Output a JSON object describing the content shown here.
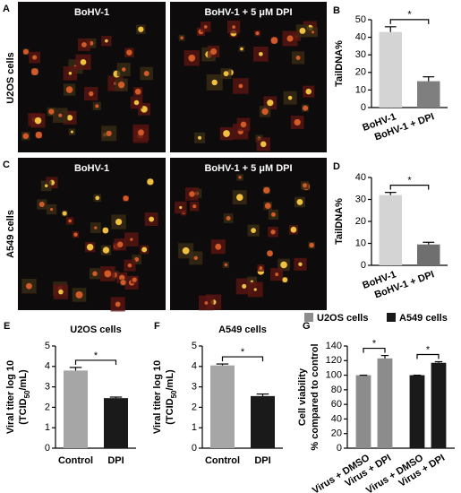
{
  "panels": [
    {
      "letter": "A",
      "row_label": "U2OS cells",
      "images": [
        "BoHV-1",
        "BoHV-1 + 5 μM DPI"
      ]
    },
    {
      "letter": "C",
      "row_label": "A549 cells",
      "images": [
        "BoHV-1",
        "BoHV-1 + 5 μM DPI"
      ]
    }
  ],
  "chart_data": [
    {
      "type": "bar",
      "panel": "B",
      "ylabel": [
        "TailDNA%"
      ],
      "categories": [
        "BoHV-1",
        "BoHV-1 + DPI"
      ],
      "values": [
        43,
        15
      ],
      "errors": [
        3,
        2.5
      ],
      "colors": [
        "#d4d4d4",
        "#7f7f7f"
      ],
      "ylim": [
        0,
        50
      ],
      "yticks": [
        0,
        10,
        20,
        30,
        40,
        50
      ],
      "annotations": [
        "*"
      ]
    },
    {
      "type": "bar",
      "panel": "D",
      "ylabel": [
        "TailDNA%"
      ],
      "categories": [
        "BoHV-1",
        "BoHV-1 + DPI"
      ],
      "values": [
        32,
        9.5
      ],
      "errors": [
        1.2,
        1
      ],
      "colors": [
        "#d4d4d4",
        "#6f6f6f"
      ],
      "ylim": [
        0,
        40
      ],
      "yticks": [
        0,
        10,
        20,
        30,
        40
      ],
      "annotations": [
        "*"
      ]
    },
    {
      "type": "bar",
      "panel": "E",
      "title": "U2OS cells",
      "ylabel": [
        "Viral titer log 10",
        [
          "(TCID",
          "50",
          "/mL)"
        ]
      ],
      "categories": [
        "Control",
        "DPI"
      ],
      "values": [
        3.8,
        2.45
      ],
      "errors": [
        0.15,
        0.05
      ],
      "colors": [
        "#a6a6a6",
        "#1a1a1a"
      ],
      "ylim": [
        0,
        5
      ],
      "yticks": [
        0,
        1,
        2,
        3,
        4,
        5
      ],
      "annotations": [
        "*"
      ]
    },
    {
      "type": "bar",
      "panel": "F",
      "title": "A549 cells",
      "ylabel": [
        "Viral titer log 10",
        [
          "(TCID",
          "50",
          "/mL)"
        ]
      ],
      "categories": [
        "Control",
        "DPI"
      ],
      "values": [
        4.05,
        2.55
      ],
      "errors": [
        0.07,
        0.1
      ],
      "colors": [
        "#a6a6a6",
        "#1a1a1a"
      ],
      "ylim": [
        0,
        5
      ],
      "yticks": [
        0,
        1,
        2,
        3,
        4,
        5
      ],
      "annotations": [
        "*"
      ]
    },
    {
      "type": "grouped_bar",
      "panel": "G",
      "ylabel": [
        "Cell viability",
        "% compared to control"
      ],
      "categories": [
        "Virus + DMSO",
        "Virus + DPI"
      ],
      "series": [
        {
          "name": "U2OS cells",
          "color": "#8c8c8c",
          "values": [
            100,
            123
          ],
          "errors": [
            0,
            4
          ]
        },
        {
          "name": "A549 cells",
          "color": "#1a1a1a",
          "values": [
            100,
            117
          ],
          "errors": [
            0,
            1.5
          ]
        }
      ],
      "ylim": [
        0,
        140
      ],
      "yticks": [
        0,
        20,
        40,
        60,
        80,
        100,
        120,
        140
      ],
      "annotations": [
        "*",
        "*"
      ]
    }
  ]
}
